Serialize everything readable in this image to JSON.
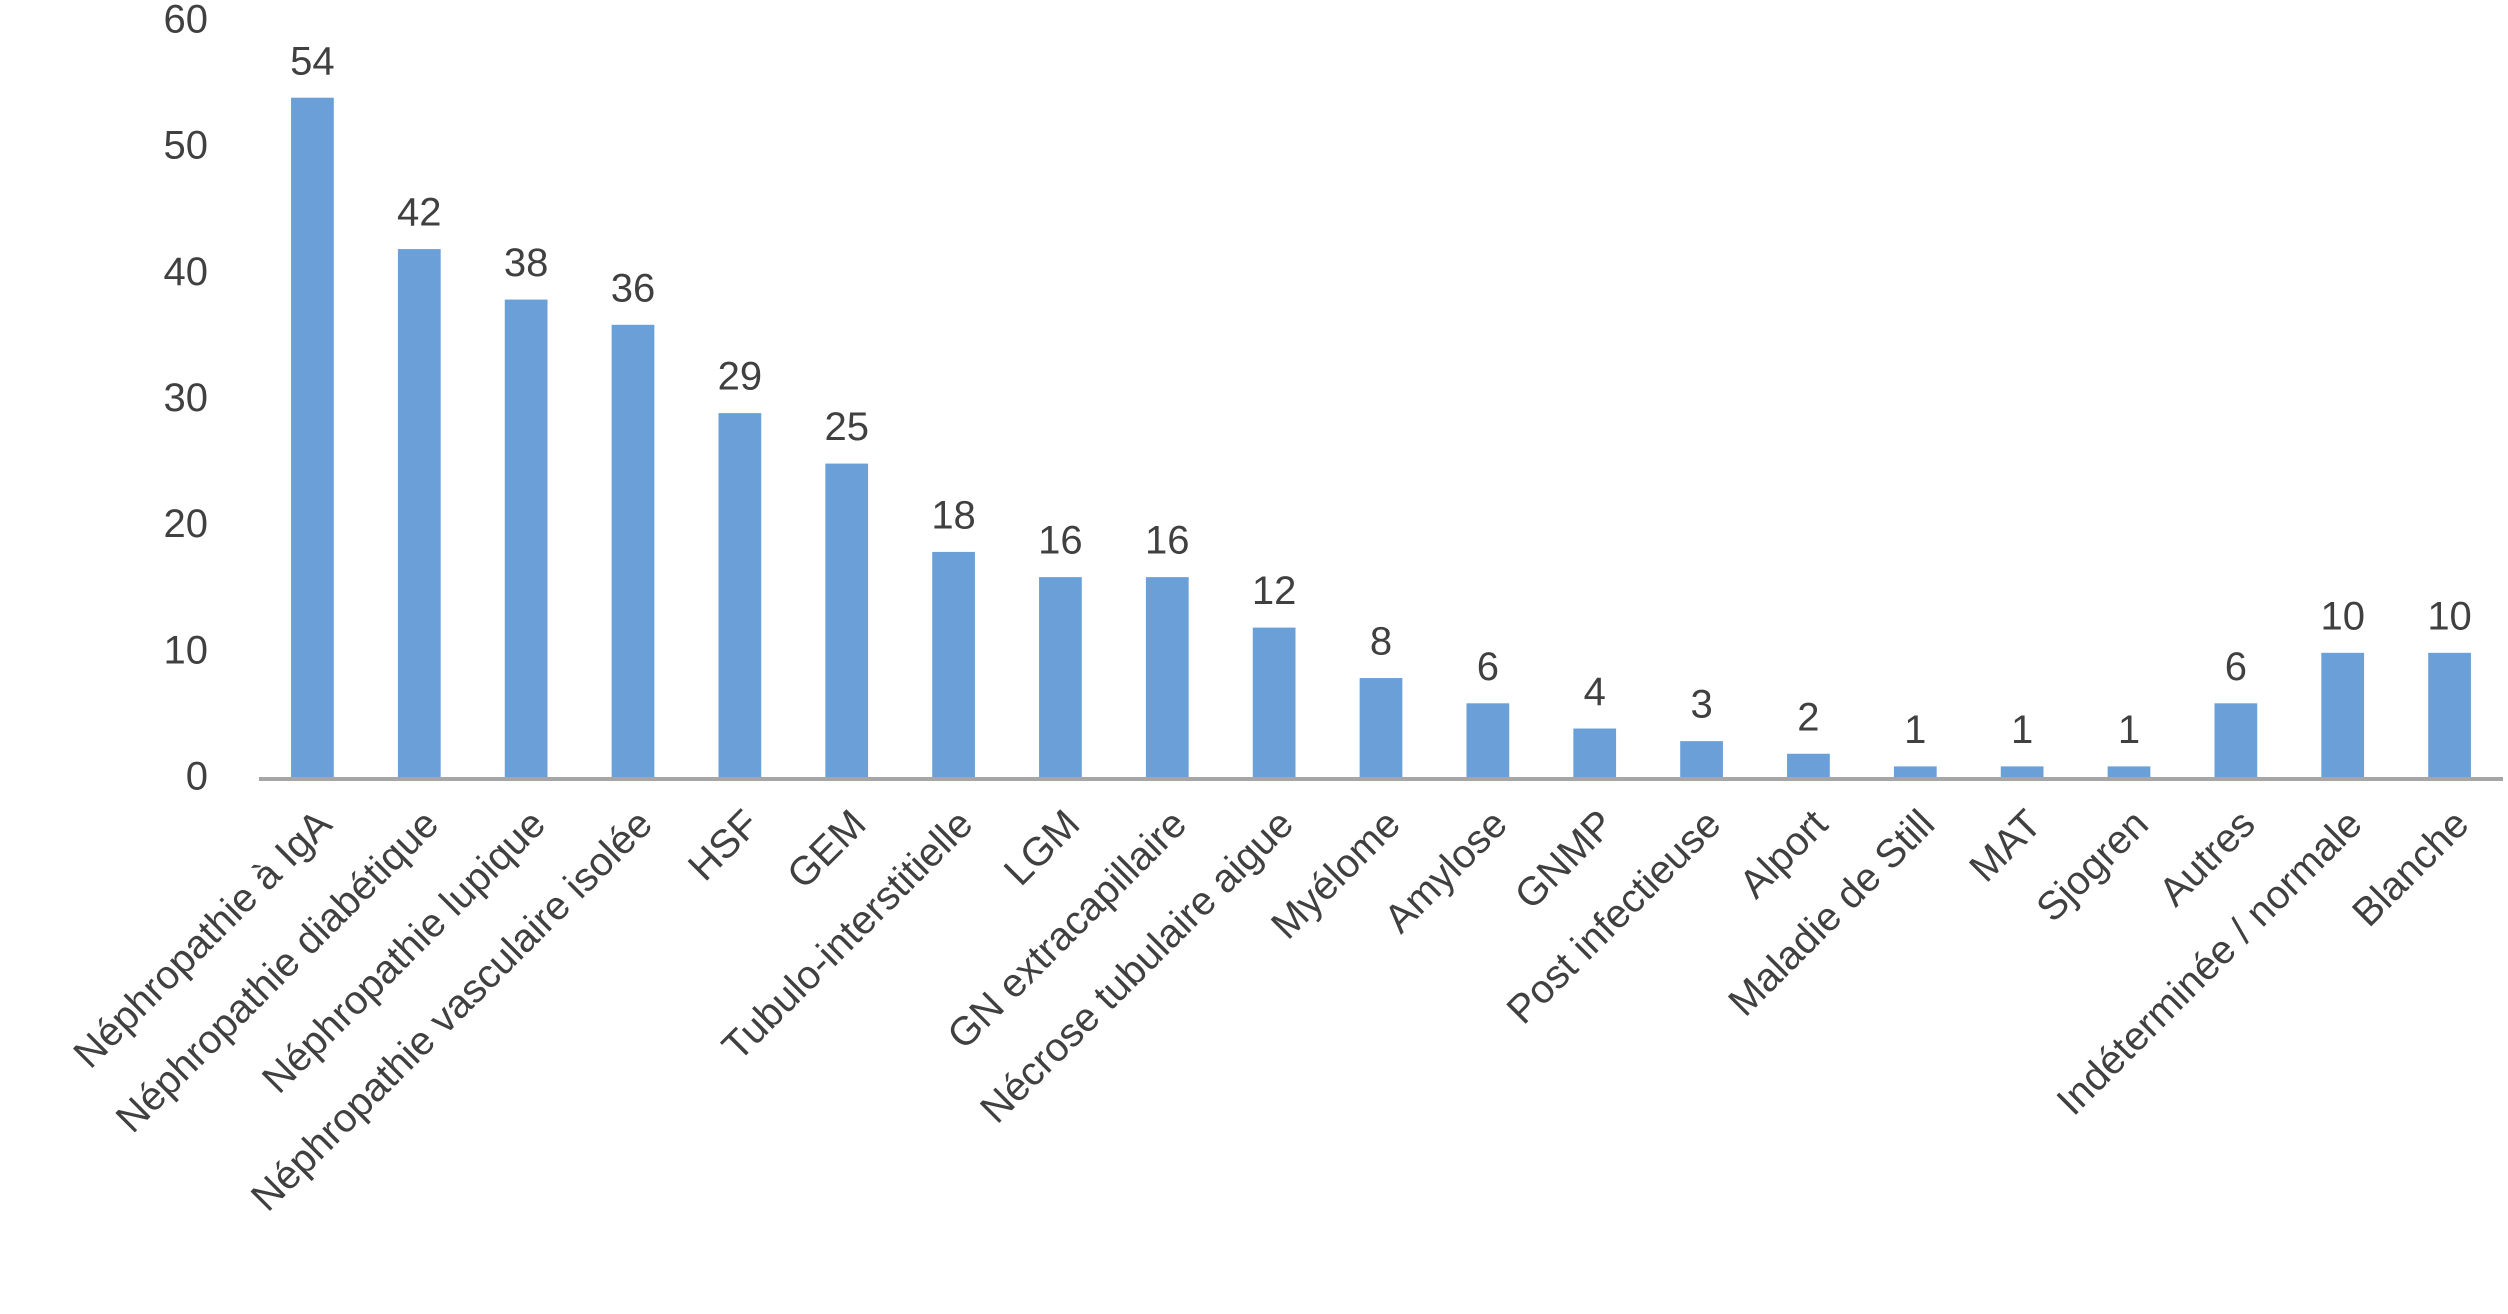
{
  "chart_data": {
    "type": "bar",
    "categories": [
      "Néphropathie à IgA",
      "Néphropathie diabétique",
      "Néphropathie lupique",
      "Néphropathie vasculaire isolée",
      "HSF",
      "GEM",
      "Tubulo-interstitielle",
      "LGM",
      "GN extracapillaire",
      "Nécrose tubulaire aigue",
      "Myélome",
      "Amylose",
      "GNMP",
      "Post infectieuse",
      "Alport",
      "Maladie de Still",
      "MAT",
      "Sjogren",
      "Autres",
      "Indéterminée / normale",
      "Blanche"
    ],
    "values": [
      54,
      42,
      38,
      36,
      29,
      25,
      18,
      16,
      16,
      12,
      8,
      6,
      4,
      3,
      2,
      1,
      1,
      1,
      6,
      10,
      10
    ],
    "color": "#6a9fd8",
    "ylim": [
      0,
      60
    ],
    "yticks": [
      0,
      10,
      20,
      30,
      40,
      50,
      60
    ],
    "grid": false
  }
}
